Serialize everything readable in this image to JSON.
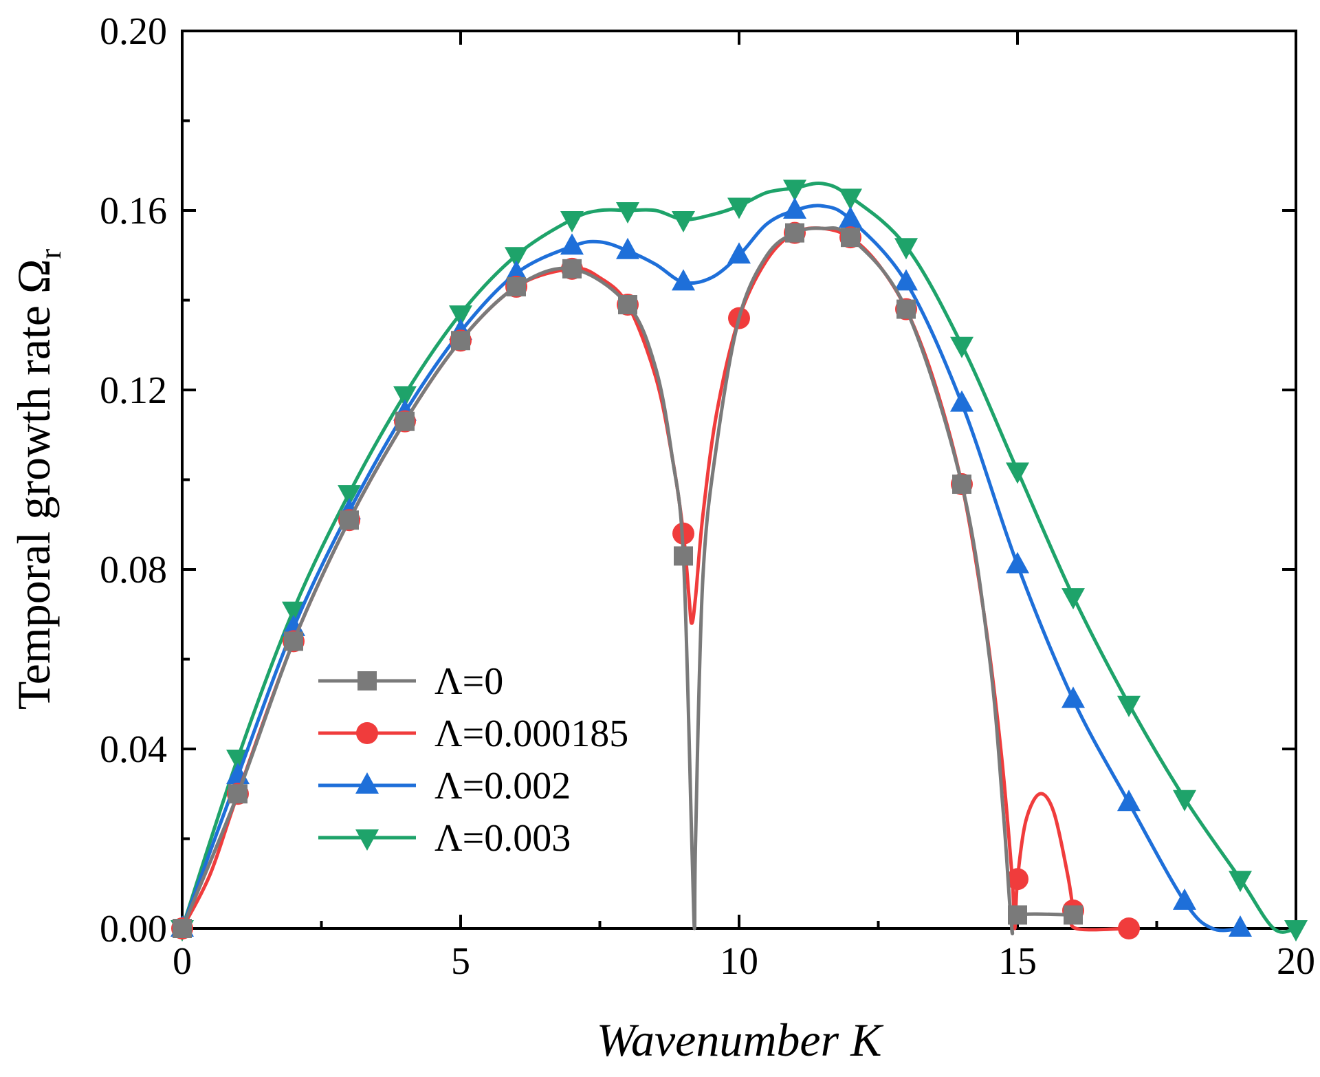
{
  "chart_data": {
    "type": "line",
    "xlabel": "Wavenumber K",
    "ylabel_main": "Temporal growth rate Ω",
    "ylabel_sub": "r",
    "xlim": [
      0,
      20
    ],
    "ylim": [
      0,
      0.2
    ],
    "x_ticks": [
      0,
      5,
      10,
      15,
      20
    ],
    "x_tick_labels": [
      "0",
      "5",
      "10",
      "15",
      "20"
    ],
    "y_ticks": [
      0,
      0.04,
      0.08,
      0.12,
      0.16,
      0.2
    ],
    "y_tick_labels": [
      "0.00",
      "0.04",
      "0.08",
      "0.12",
      "0.16",
      "0.20"
    ],
    "legend_position": "bottom-left",
    "series": [
      {
        "name": "Λ=0",
        "color": "#7a7a7a",
        "marker": "square",
        "markers": [
          [
            0,
            0
          ],
          [
            1,
            0.03
          ],
          [
            2,
            0.064
          ],
          [
            3,
            0.091
          ],
          [
            4,
            0.113
          ],
          [
            5,
            0.131
          ],
          [
            6,
            0.143
          ],
          [
            7,
            0.147
          ],
          [
            8,
            0.139
          ],
          [
            9,
            0.083
          ],
          [
            11,
            0.155
          ],
          [
            12,
            0.154
          ],
          [
            13,
            0.138
          ],
          [
            14,
            0.099
          ],
          [
            15,
            0.003
          ],
          [
            16,
            0.003
          ]
        ],
        "curve": [
          [
            0,
            0
          ],
          [
            1,
            0.03
          ],
          [
            2,
            0.064
          ],
          [
            3,
            0.091
          ],
          [
            4,
            0.113
          ],
          [
            5,
            0.131
          ],
          [
            6,
            0.143
          ],
          [
            7,
            0.147
          ],
          [
            8,
            0.139
          ],
          [
            8.5,
            0.125
          ],
          [
            8.8,
            0.105
          ],
          [
            9.0,
            0.083
          ],
          [
            9.15,
            0.02
          ],
          [
            9.2,
            0
          ],
          [
            9.22,
            0.02
          ],
          [
            9.35,
            0.078
          ],
          [
            9.6,
            0.108
          ],
          [
            10,
            0.136
          ],
          [
            10.5,
            0.15
          ],
          [
            11,
            0.155
          ],
          [
            11.5,
            0.156
          ],
          [
            12,
            0.154
          ],
          [
            13,
            0.138
          ],
          [
            14,
            0.099
          ],
          [
            14.5,
            0.06
          ],
          [
            14.75,
            0.025
          ],
          [
            14.9,
            0
          ],
          [
            15.0,
            0.003
          ],
          [
            16,
            0.003
          ]
        ]
      },
      {
        "name": "Λ=0.000185",
        "color": "#f03c3c",
        "marker": "circle",
        "markers": [
          [
            0,
            0
          ],
          [
            1,
            0.03
          ],
          [
            2,
            0.064
          ],
          [
            3,
            0.091
          ],
          [
            4,
            0.113
          ],
          [
            5,
            0.131
          ],
          [
            6,
            0.143
          ],
          [
            7,
            0.147
          ],
          [
            8,
            0.139
          ],
          [
            9,
            0.088
          ],
          [
            10,
            0.136
          ],
          [
            11,
            0.155
          ],
          [
            12,
            0.154
          ],
          [
            13,
            0.138
          ],
          [
            14,
            0.099
          ],
          [
            15,
            0.011
          ],
          [
            16,
            0.004
          ],
          [
            17,
            0.0
          ]
        ],
        "curve": [
          [
            0,
            0
          ],
          [
            0.5,
            0.012
          ],
          [
            1,
            0.03
          ],
          [
            2,
            0.064
          ],
          [
            3,
            0.091
          ],
          [
            4,
            0.113
          ],
          [
            5,
            0.131
          ],
          [
            6,
            0.143
          ],
          [
            7,
            0.147
          ],
          [
            7.5,
            0.145
          ],
          [
            8,
            0.139
          ],
          [
            8.5,
            0.123
          ],
          [
            8.8,
            0.105
          ],
          [
            9.0,
            0.088
          ],
          [
            9.1,
            0.074
          ],
          [
            9.15,
            0.068
          ],
          [
            9.22,
            0.074
          ],
          [
            9.35,
            0.092
          ],
          [
            9.6,
            0.115
          ],
          [
            10,
            0.136
          ],
          [
            10.5,
            0.149
          ],
          [
            11,
            0.155
          ],
          [
            11.5,
            0.156
          ],
          [
            12,
            0.154
          ],
          [
            12.5,
            0.148
          ],
          [
            13,
            0.138
          ],
          [
            13.5,
            0.122
          ],
          [
            14,
            0.099
          ],
          [
            14.4,
            0.07
          ],
          [
            14.7,
            0.04
          ],
          [
            14.9,
            0.012
          ],
          [
            14.95,
            0.0
          ],
          [
            15.0,
            0.011
          ],
          [
            15.15,
            0.024
          ],
          [
            15.4,
            0.03
          ],
          [
            15.65,
            0.026
          ],
          [
            15.9,
            0.012
          ],
          [
            16.0,
            0.004
          ],
          [
            16.05,
            0.0
          ],
          [
            17,
            0.0
          ]
        ]
      },
      {
        "name": "Λ=0.002",
        "color": "#1e6fd9",
        "marker": "triangle-up",
        "markers": [
          [
            0,
            0
          ],
          [
            1,
            0.034
          ],
          [
            2,
            0.067
          ],
          [
            3,
            0.093
          ],
          [
            4,
            0.115
          ],
          [
            5,
            0.133
          ],
          [
            6,
            0.146
          ],
          [
            7,
            0.152
          ],
          [
            8,
            0.151
          ],
          [
            9,
            0.144
          ],
          [
            10,
            0.15
          ],
          [
            11,
            0.16
          ],
          [
            12,
            0.158
          ],
          [
            13,
            0.144
          ],
          [
            14,
            0.117
          ],
          [
            15,
            0.081
          ],
          [
            16,
            0.051
          ],
          [
            17,
            0.028
          ],
          [
            18,
            0.006
          ],
          [
            19,
            0.0
          ]
        ],
        "curve": [
          [
            0,
            0
          ],
          [
            1,
            0.034
          ],
          [
            2,
            0.067
          ],
          [
            3,
            0.093
          ],
          [
            4,
            0.115
          ],
          [
            5,
            0.133
          ],
          [
            6,
            0.146
          ],
          [
            7,
            0.152
          ],
          [
            7.5,
            0.153
          ],
          [
            8,
            0.151
          ],
          [
            8.5,
            0.148
          ],
          [
            9,
            0.144
          ],
          [
            9.5,
            0.145
          ],
          [
            10,
            0.15
          ],
          [
            10.5,
            0.157
          ],
          [
            11,
            0.16
          ],
          [
            11.5,
            0.161
          ],
          [
            12,
            0.158
          ],
          [
            13,
            0.144
          ],
          [
            14,
            0.117
          ],
          [
            15,
            0.081
          ],
          [
            16,
            0.051
          ],
          [
            17,
            0.028
          ],
          [
            18,
            0.006
          ],
          [
            18.5,
            0.0
          ],
          [
            19,
            0.0
          ]
        ]
      },
      {
        "name": "Λ=0.003",
        "color": "#1ea36a",
        "marker": "triangle-down",
        "markers": [
          [
            0,
            0
          ],
          [
            1,
            0.038
          ],
          [
            2,
            0.071
          ],
          [
            3,
            0.097
          ],
          [
            4,
            0.119
          ],
          [
            5,
            0.137
          ],
          [
            6,
            0.15
          ],
          [
            7,
            0.158
          ],
          [
            8,
            0.16
          ],
          [
            9,
            0.158
          ],
          [
            10,
            0.161
          ],
          [
            11,
            0.165
          ],
          [
            12,
            0.163
          ],
          [
            13,
            0.152
          ],
          [
            14,
            0.13
          ],
          [
            15,
            0.102
          ],
          [
            16,
            0.074
          ],
          [
            17,
            0.05
          ],
          [
            18,
            0.029
          ],
          [
            19,
            0.011
          ],
          [
            20,
            0.0
          ]
        ],
        "curve": [
          [
            0,
            0
          ],
          [
            1,
            0.038
          ],
          [
            2,
            0.071
          ],
          [
            3,
            0.097
          ],
          [
            4,
            0.119
          ],
          [
            5,
            0.137
          ],
          [
            6,
            0.15
          ],
          [
            7,
            0.158
          ],
          [
            7.5,
            0.16
          ],
          [
            8,
            0.16
          ],
          [
            8.5,
            0.16
          ],
          [
            9,
            0.158
          ],
          [
            9.5,
            0.159
          ],
          [
            10,
            0.161
          ],
          [
            10.5,
            0.164
          ],
          [
            11,
            0.165
          ],
          [
            11.5,
            0.166
          ],
          [
            12,
            0.163
          ],
          [
            13,
            0.152
          ],
          [
            14,
            0.13
          ],
          [
            15,
            0.102
          ],
          [
            16,
            0.074
          ],
          [
            17,
            0.05
          ],
          [
            18,
            0.029
          ],
          [
            19,
            0.011
          ],
          [
            19.6,
            0.0
          ],
          [
            20,
            0.0
          ]
        ]
      }
    ]
  }
}
